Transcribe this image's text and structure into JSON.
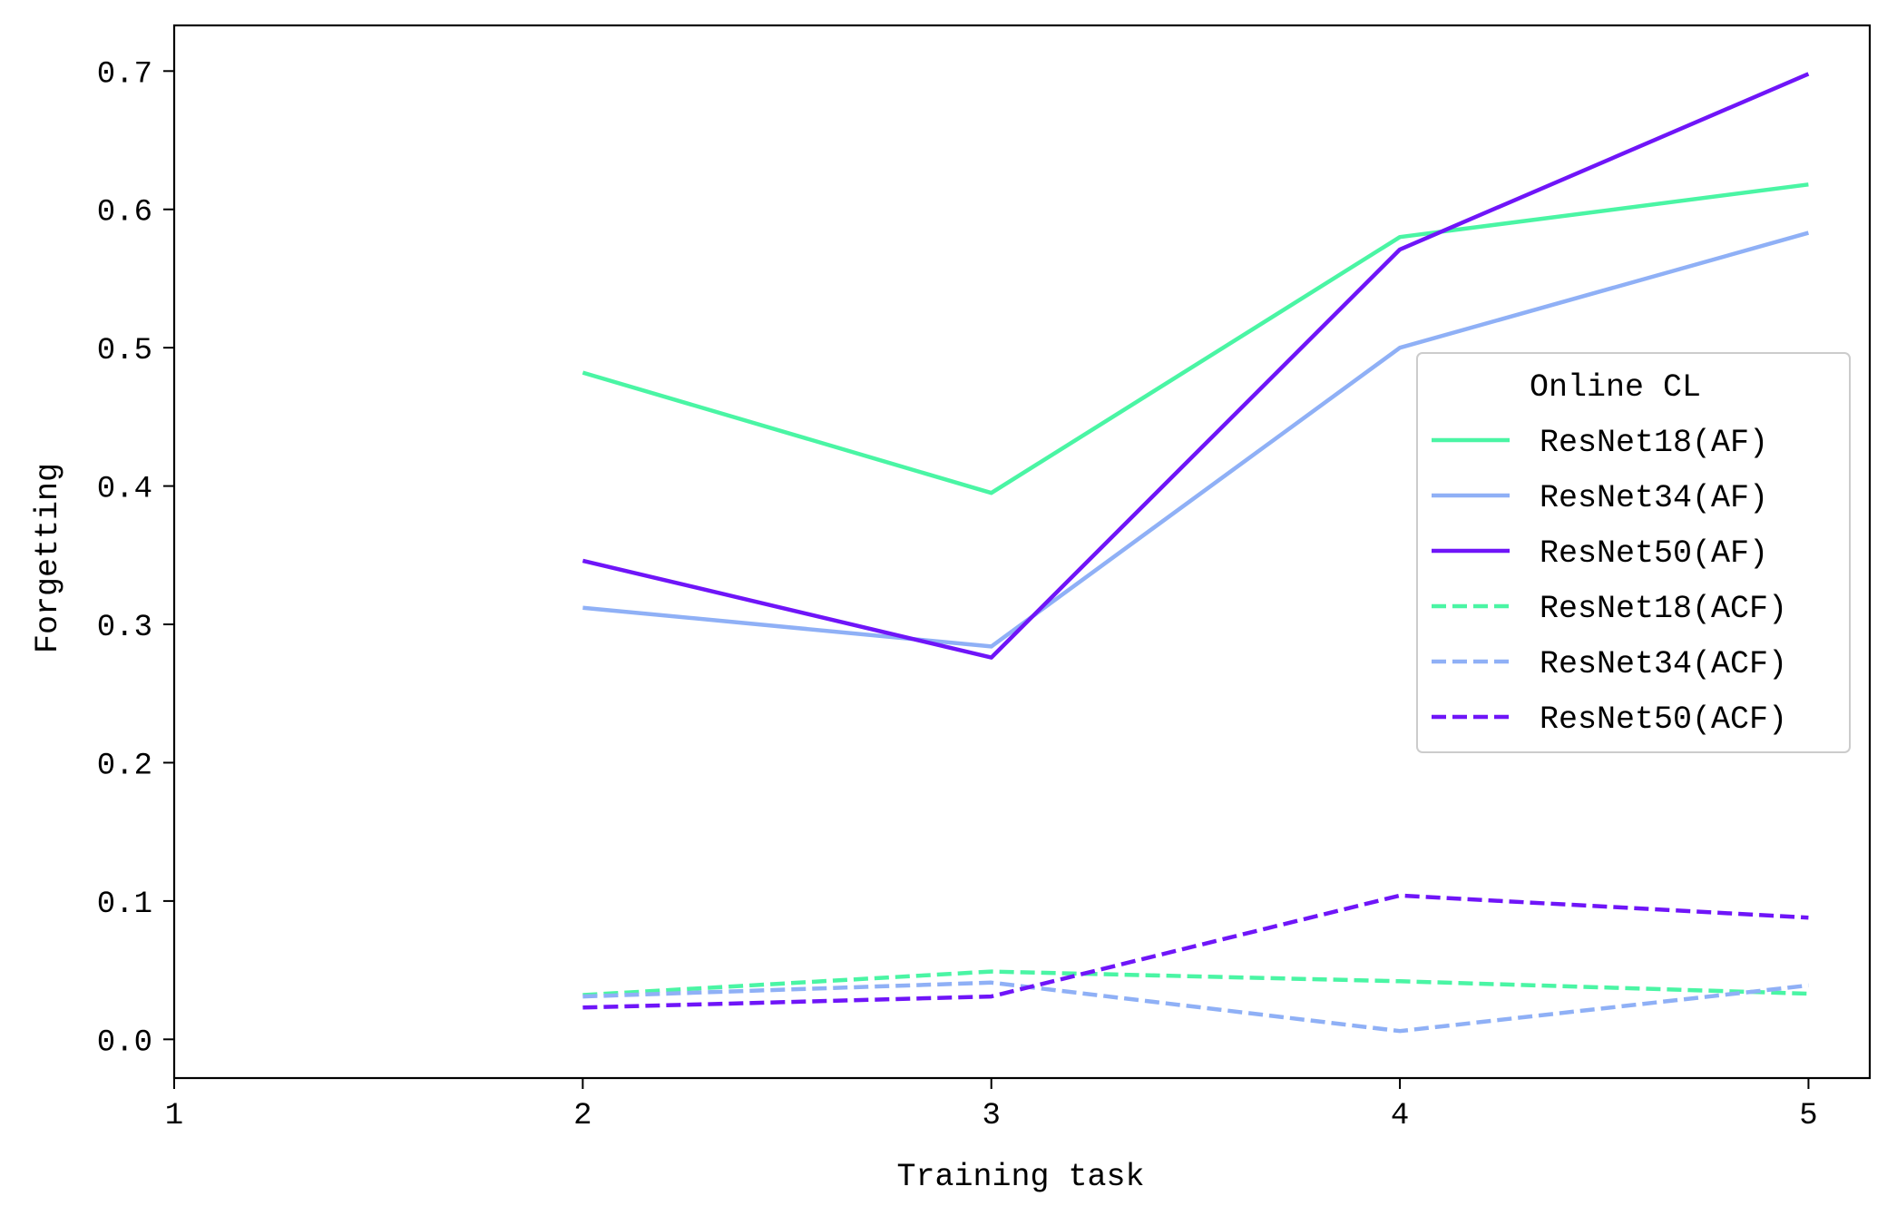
{
  "chart_data": {
    "type": "line",
    "title": "",
    "xlabel": "Training task",
    "ylabel": "Forgetting",
    "xlim": [
      1,
      5.15
    ],
    "ylim": [
      -0.028,
      0.733
    ],
    "xticks": [
      1,
      2,
      3,
      4,
      5
    ],
    "xtick_labels": [
      "1",
      "2",
      "3",
      "4",
      "5"
    ],
    "yticks": [
      0.0,
      0.1,
      0.2,
      0.3,
      0.4,
      0.5,
      0.6,
      0.7
    ],
    "ytick_labels": [
      "0.0",
      "0.1",
      "0.2",
      "0.3",
      "0.4",
      "0.5",
      "0.6",
      "0.7"
    ],
    "grid": false,
    "legend": {
      "title": "Online CL",
      "placement": "center-right"
    },
    "x": [
      2,
      3,
      4,
      5
    ],
    "series": [
      {
        "name": "ResNet18(AF)",
        "values": [
          0.482,
          0.395,
          0.58,
          0.618
        ],
        "color": "#4af5a4",
        "style": "solid"
      },
      {
        "name": "ResNet34(AF)",
        "values": [
          0.312,
          0.284,
          0.5,
          0.583
        ],
        "color": "#8fb0f6",
        "style": "solid"
      },
      {
        "name": "ResNet50(AF)",
        "values": [
          0.346,
          0.276,
          0.571,
          0.698
        ],
        "color": "#6f15f8",
        "style": "solid"
      },
      {
        "name": "ResNet18(ACF)",
        "values": [
          0.032,
          0.049,
          0.042,
          0.033
        ],
        "color": "#4af5a4",
        "style": "dashed"
      },
      {
        "name": "ResNet34(ACF)",
        "values": [
          0.031,
          0.041,
          0.006,
          0.039
        ],
        "color": "#8fb0f6",
        "style": "dashed"
      },
      {
        "name": "ResNet50(ACF)",
        "values": [
          0.023,
          0.031,
          0.104,
          0.088
        ],
        "color": "#6f15f8",
        "style": "dashed"
      }
    ]
  }
}
